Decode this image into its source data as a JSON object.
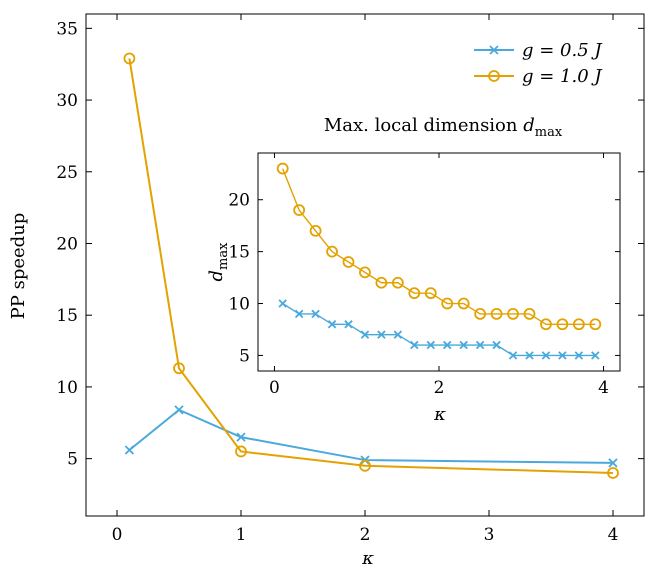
{
  "chart_data": [
    {
      "type": "line",
      "xlabel": "κ",
      "ylabel": "PP speedup",
      "xlim": [
        -0.25,
        4.25
      ],
      "ylim": [
        1,
        36
      ],
      "xticks": [
        "0",
        "1",
        "2",
        "3",
        "4"
      ],
      "yticks": [
        "5",
        "10",
        "15",
        "20",
        "25",
        "30",
        "35"
      ],
      "legend_position": "top-right",
      "series": [
        {
          "name": "g = 0.5 J",
          "marker": "cross",
          "color": "#4aa9dc",
          "x": [
            0.1,
            0.5,
            1,
            2,
            4
          ],
          "y": [
            5.6,
            8.4,
            6.5,
            4.9,
            4.7
          ]
        },
        {
          "name": "g = 1.0 J",
          "marker": "circle",
          "color": "#e3a200",
          "x": [
            0.1,
            0.5,
            1,
            2,
            4
          ],
          "y": [
            32.9,
            11.3,
            5.5,
            4.5,
            4.0
          ]
        }
      ]
    },
    {
      "type": "line",
      "title": "Max. local dimension d_max",
      "xlabel": "κ",
      "ylabel": "d_max",
      "xlim": [
        -0.2,
        4.2
      ],
      "ylim": [
        3.5,
        24.5
      ],
      "xticks": [
        "0",
        "2",
        "4"
      ],
      "yticks": [
        "5",
        "10",
        "15",
        "20"
      ],
      "series": [
        {
          "marker": "cross",
          "color": "#4aa9dc",
          "x": [
            0.1,
            0.3,
            0.5,
            0.7,
            0.9,
            1.1,
            1.3,
            1.5,
            1.7,
            1.9,
            2.1,
            2.3,
            2.5,
            2.7,
            2.9,
            3.1,
            3.3,
            3.5,
            3.7,
            3.9
          ],
          "y": [
            10,
            9,
            9,
            8,
            8,
            7,
            7,
            7,
            6,
            6,
            6,
            6,
            6,
            6,
            5,
            5,
            5,
            5,
            5,
            5
          ]
        },
        {
          "marker": "circle",
          "color": "#e3a200",
          "x": [
            0.1,
            0.3,
            0.5,
            0.7,
            0.9,
            1.1,
            1.3,
            1.5,
            1.7,
            1.9,
            2.1,
            2.3,
            2.5,
            2.7,
            2.9,
            3.1,
            3.3,
            3.5,
            3.7,
            3.9
          ],
          "y": [
            23,
            19,
            17,
            15,
            14,
            13,
            12,
            12,
            11,
            11,
            10,
            10,
            9,
            9,
            9,
            9,
            8,
            8,
            8,
            8
          ]
        }
      ]
    }
  ]
}
